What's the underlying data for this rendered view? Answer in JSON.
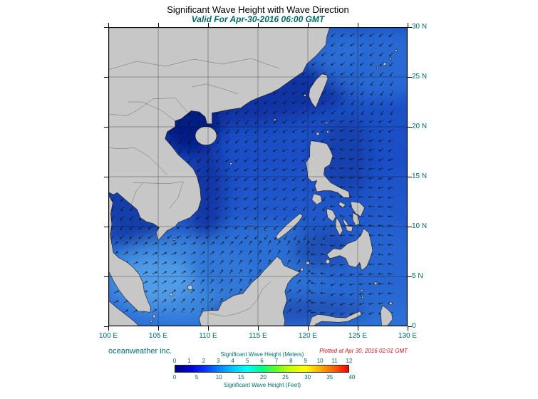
{
  "title": "Significant Wave Height with Wave Direction",
  "subtitle": "Valid For Apr-30-2016 06:00 GMT",
  "axes": {
    "lat_labels": [
      "30 N",
      "25 N",
      "20 N",
      "15 N",
      "10 N",
      "5 N",
      "0"
    ],
    "lon_labels": [
      "100 E",
      "105 E",
      "110 E",
      "115 E",
      "120 E",
      "125 E",
      "130 E"
    ]
  },
  "footer": {
    "credit": "oceanweather inc.",
    "plotted_at": "Plotted at Apr 30, 2016 02:01 GMT"
  },
  "colorbar": {
    "meters_title": "Significant Wave Height (Meters)",
    "feet_title": "Significant Wave Height (Feet)",
    "meters_ticks": [
      "0",
      "1",
      "2",
      "3",
      "4",
      "5",
      "6",
      "7",
      "8",
      "9",
      "10",
      "11",
      "12"
    ],
    "feet_ticks": [
      "0",
      "5",
      "10",
      "15",
      "20",
      "25",
      "30",
      "35",
      "40"
    ],
    "gradient_colors": [
      "#000080",
      "#0000d0",
      "#0030ff",
      "#0080ff",
      "#00c8ff",
      "#00ffff",
      "#00ff88",
      "#66ff22",
      "#ccff00",
      "#ffff00",
      "#ffb000",
      "#ff6000",
      "#ff0000"
    ]
  },
  "map_colors": {
    "land": "#c7c7c7",
    "ocean_base": "#1b4fc4",
    "label_teal": "#006b6b",
    "plotted_red": "#cc1111"
  },
  "chart_data": {
    "type": "map",
    "title": "Significant Wave Height with Wave Direction",
    "valid_time": "Apr-30-2016 06:00 GMT",
    "region": {
      "lon_range_deg_e": [
        100,
        130
      ],
      "lat_range_deg_n": [
        0,
        30
      ]
    },
    "x_axis": {
      "label": "longitude",
      "ticks": [
        "100 E",
        "105 E",
        "110 E",
        "115 E",
        "120 E",
        "125 E",
        "130 E"
      ]
    },
    "y_axis": {
      "label": "latitude",
      "ticks": [
        "0",
        "5 N",
        "10 N",
        "15 N",
        "20 N",
        "25 N",
        "30 N"
      ]
    },
    "colorbar_scale": {
      "meters_range": [
        0,
        12
      ],
      "feet_range": [
        0,
        40
      ]
    },
    "plotted_at": "Apr 30, 2016 02:01 GMT",
    "source": "oceanweather inc."
  }
}
